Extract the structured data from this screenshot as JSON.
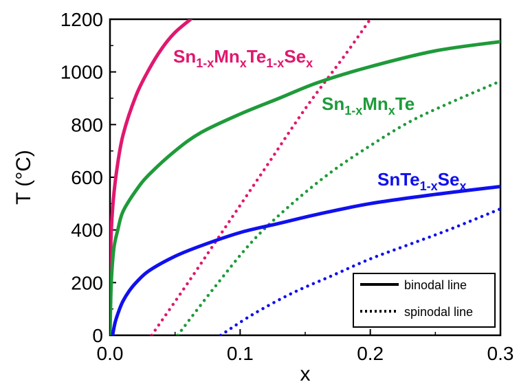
{
  "chart_data": {
    "type": "line",
    "xlabel": "x",
    "ylabel": "T (°C)",
    "xlim": [
      0,
      0.3
    ],
    "ylim": [
      0,
      1200
    ],
    "x_ticks": [
      "0.0",
      "0.1",
      "0.2",
      "0.3"
    ],
    "y_ticks": [
      "0",
      "200",
      "400",
      "600",
      "800",
      "1000",
      "1200"
    ],
    "grid": false,
    "legend": {
      "placement": "bottom-right",
      "entries": [
        {
          "label": "binodal line",
          "style": "solid"
        },
        {
          "label": "spinodal line",
          "style": "dotted"
        }
      ]
    },
    "series": [
      {
        "name": "Sn1-xMnxTe1-xSex",
        "label_parts": [
          {
            "t": "Sn",
            "sub": false
          },
          {
            "t": "1-x",
            "sub": true
          },
          {
            "t": "Mn",
            "sub": false
          },
          {
            "t": "x",
            "sub": true
          },
          {
            "t": "Te",
            "sub": false
          },
          {
            "t": "1-x",
            "sub": true
          },
          {
            "t": "Se",
            "sub": false
          },
          {
            "t": "x",
            "sub": true
          }
        ],
        "color": "#e0186e",
        "binodal": {
          "x": [
            0.0,
            0.0005,
            0.002,
            0.005,
            0.01,
            0.02,
            0.03,
            0.04,
            0.05,
            0.062
          ],
          "y": [
            0,
            320,
            480,
            620,
            760,
            910,
            1010,
            1090,
            1150,
            1200
          ]
        },
        "spinodal": {
          "x": [
            0.032,
            0.06,
            0.09,
            0.12,
            0.15,
            0.18,
            0.2
          ],
          "y": [
            0,
            200,
            420,
            640,
            860,
            1060,
            1200
          ]
        }
      },
      {
        "name": "Sn1-xMnxTe",
        "label_parts": [
          {
            "t": "Sn",
            "sub": false
          },
          {
            "t": "1-x",
            "sub": true
          },
          {
            "t": "Mn",
            "sub": false
          },
          {
            "t": "x",
            "sub": true
          },
          {
            "t": "Te",
            "sub": false
          }
        ],
        "color": "#1f9a3a",
        "binodal": {
          "x": [
            0.0,
            0.001,
            0.003,
            0.006,
            0.01,
            0.02,
            0.03,
            0.05,
            0.07,
            0.1,
            0.13,
            0.16,
            0.2,
            0.25,
            0.3
          ],
          "y": [
            0,
            200,
            330,
            400,
            470,
            550,
            610,
            700,
            770,
            840,
            900,
            960,
            1020,
            1080,
            1115
          ]
        },
        "spinodal": {
          "x": [
            0.052,
            0.08,
            0.11,
            0.14,
            0.17,
            0.2,
            0.23,
            0.26,
            0.3
          ],
          "y": [
            0,
            180,
            360,
            500,
            620,
            720,
            810,
            880,
            965
          ]
        }
      },
      {
        "name": "SnTe1-xSex",
        "label_parts": [
          {
            "t": "SnTe",
            "sub": false
          },
          {
            "t": "1-x",
            "sub": true
          },
          {
            "t": "Se",
            "sub": false
          },
          {
            "t": "x",
            "sub": true
          }
        ],
        "color": "#1010ee",
        "binodal": {
          "x": [
            0.002,
            0.004,
            0.007,
            0.01,
            0.015,
            0.02,
            0.03,
            0.05,
            0.07,
            0.1,
            0.13,
            0.16,
            0.2,
            0.25,
            0.3
          ],
          "y": [
            0,
            50,
            95,
            130,
            170,
            200,
            245,
            300,
            340,
            390,
            425,
            460,
            500,
            535,
            565
          ]
        },
        "spinodal": {
          "x": [
            0.085,
            0.11,
            0.14,
            0.17,
            0.2,
            0.23,
            0.26,
            0.3
          ],
          "y": [
            0,
            80,
            160,
            225,
            290,
            345,
            400,
            480
          ]
        }
      }
    ]
  }
}
